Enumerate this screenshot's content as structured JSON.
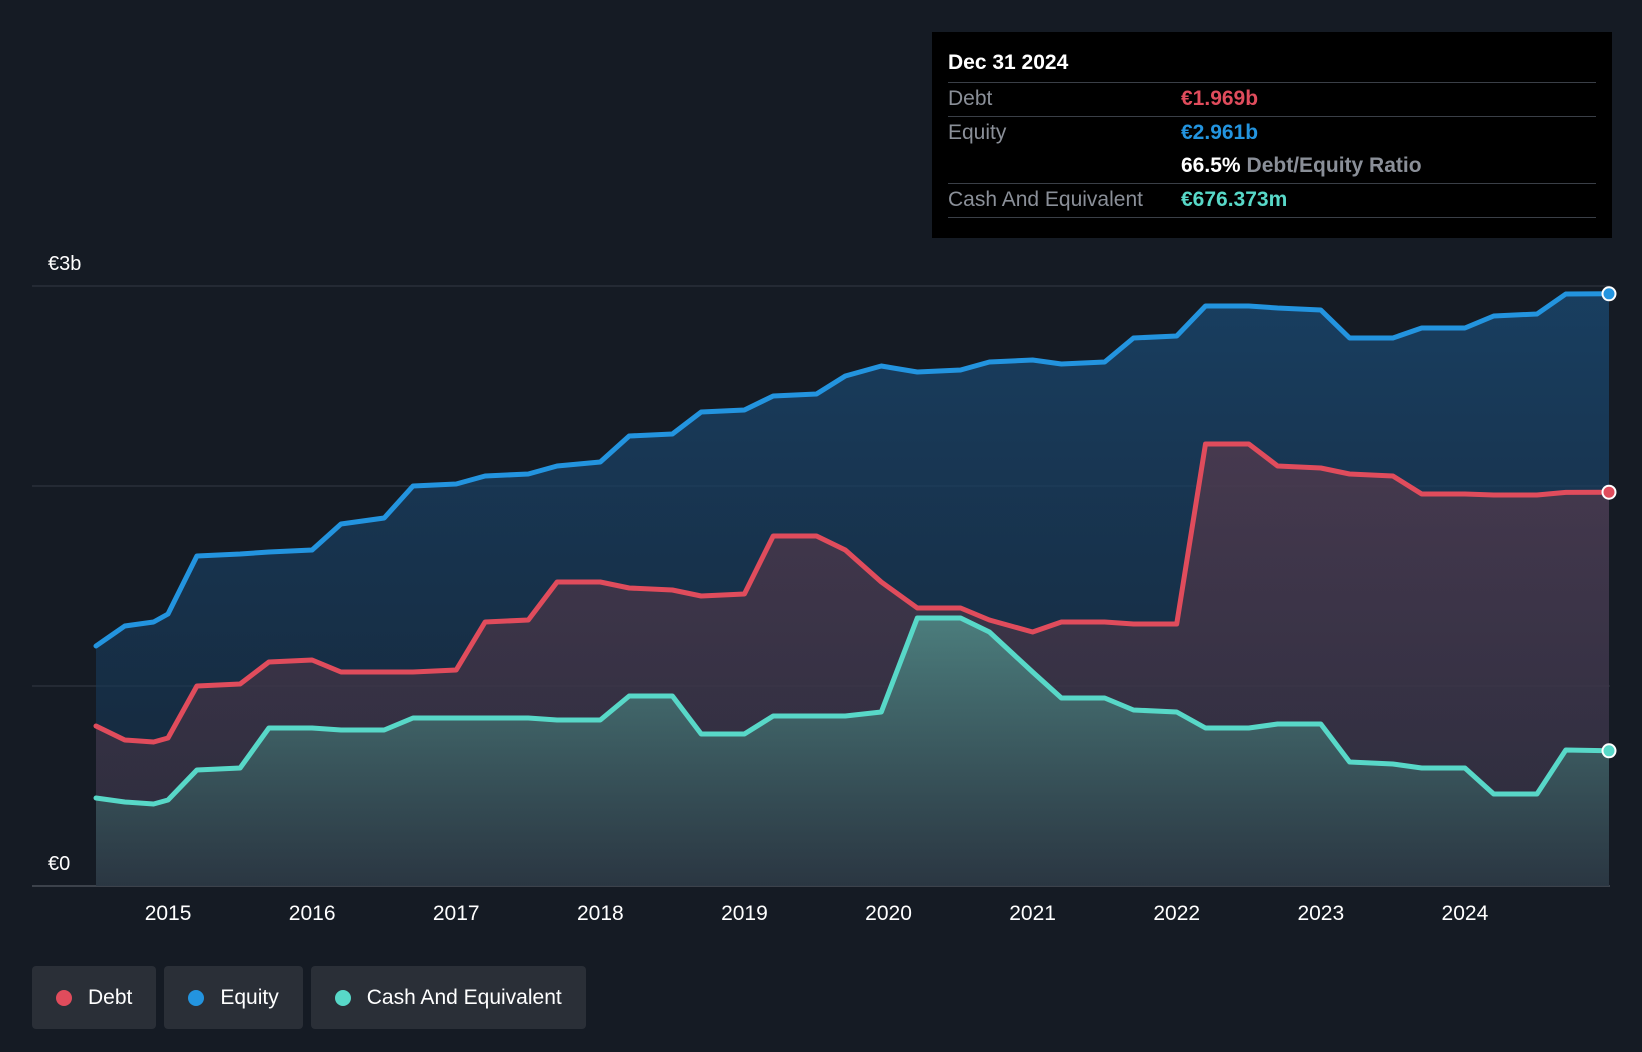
{
  "chart_data": {
    "type": "area",
    "ylabels": [
      "€3b",
      "€0"
    ],
    "ylim": [
      0,
      3.0
    ],
    "xlim": [
      2014.5,
      2025.0
    ],
    "xticks": [
      "2015",
      "2016",
      "2017",
      "2018",
      "2019",
      "2020",
      "2021",
      "2022",
      "2023",
      "2024"
    ],
    "grid": true,
    "legend_position": "bottom-left",
    "series": [
      {
        "name": "Equity",
        "color": "#2394df",
        "x": [
          2014.5,
          2014.7,
          2014.9,
          2015.0,
          2015.2,
          2015.5,
          2015.7,
          2016.0,
          2016.2,
          2016.5,
          2016.7,
          2017.0,
          2017.2,
          2017.5,
          2017.7,
          2018.0,
          2018.2,
          2018.5,
          2018.7,
          2019.0,
          2019.2,
          2019.5,
          2019.7,
          2019.95,
          2020.2,
          2020.5,
          2020.7,
          2021.0,
          2021.2,
          2021.5,
          2021.7,
          2022.0,
          2022.2,
          2022.5,
          2022.7,
          2023.0,
          2023.2,
          2023.5,
          2023.7,
          2024.0,
          2024.2,
          2024.5,
          2024.7,
          2025.0
        ],
        "values": [
          1.2,
          1.3,
          1.32,
          1.36,
          1.65,
          1.66,
          1.67,
          1.68,
          1.81,
          1.84,
          2.0,
          2.01,
          2.05,
          2.06,
          2.1,
          2.12,
          2.25,
          2.26,
          2.37,
          2.38,
          2.45,
          2.46,
          2.55,
          2.6,
          2.57,
          2.58,
          2.62,
          2.63,
          2.61,
          2.62,
          2.74,
          2.75,
          2.9,
          2.9,
          2.89,
          2.88,
          2.74,
          2.74,
          2.79,
          2.79,
          2.85,
          2.86,
          2.96,
          2.961
        ]
      },
      {
        "name": "Debt",
        "color": "#e04c5c",
        "x": [
          2014.5,
          2014.7,
          2014.9,
          2015.0,
          2015.2,
          2015.5,
          2015.7,
          2016.0,
          2016.2,
          2016.5,
          2016.7,
          2017.0,
          2017.2,
          2017.5,
          2017.7,
          2018.0,
          2018.2,
          2018.5,
          2018.7,
          2019.0,
          2019.2,
          2019.5,
          2019.7,
          2019.95,
          2020.2,
          2020.5,
          2020.7,
          2021.0,
          2021.2,
          2021.5,
          2021.7,
          2022.0,
          2022.2,
          2022.5,
          2022.7,
          2023.0,
          2023.2,
          2023.5,
          2023.7,
          2024.0,
          2024.2,
          2024.5,
          2024.7,
          2025.0
        ],
        "values": [
          0.8,
          0.73,
          0.72,
          0.74,
          1.0,
          1.01,
          1.12,
          1.13,
          1.07,
          1.07,
          1.07,
          1.08,
          1.32,
          1.33,
          1.52,
          1.52,
          1.49,
          1.48,
          1.45,
          1.46,
          1.75,
          1.75,
          1.68,
          1.52,
          1.39,
          1.39,
          1.33,
          1.27,
          1.32,
          1.32,
          1.31,
          1.31,
          2.21,
          2.21,
          2.1,
          2.09,
          2.06,
          2.05,
          1.96,
          1.96,
          1.955,
          1.955,
          1.968,
          1.969
        ]
      },
      {
        "name": "Cash And Equivalent",
        "color": "#58d8c8",
        "x": [
          2014.5,
          2014.7,
          2014.9,
          2015.0,
          2015.2,
          2015.5,
          2015.7,
          2016.0,
          2016.2,
          2016.5,
          2016.7,
          2017.0,
          2017.2,
          2017.5,
          2017.7,
          2018.0,
          2018.2,
          2018.5,
          2018.7,
          2019.0,
          2019.2,
          2019.5,
          2019.7,
          2019.95,
          2020.2,
          2020.5,
          2020.7,
          2021.0,
          2021.2,
          2021.5,
          2021.7,
          2022.0,
          2022.2,
          2022.5,
          2022.7,
          2023.0,
          2023.2,
          2023.5,
          2023.7,
          2024.0,
          2024.2,
          2024.5,
          2024.7,
          2025.0
        ],
        "values": [
          0.44,
          0.42,
          0.41,
          0.43,
          0.58,
          0.59,
          0.79,
          0.79,
          0.78,
          0.78,
          0.84,
          0.84,
          0.84,
          0.84,
          0.83,
          0.83,
          0.95,
          0.95,
          0.76,
          0.76,
          0.85,
          0.85,
          0.85,
          0.87,
          1.34,
          1.34,
          1.27,
          1.07,
          0.94,
          0.94,
          0.88,
          0.87,
          0.79,
          0.79,
          0.81,
          0.81,
          0.62,
          0.61,
          0.59,
          0.59,
          0.46,
          0.46,
          0.68,
          0.676
        ]
      }
    ]
  },
  "tooltip": {
    "date": "Dec 31 2024",
    "debt_label": "Debt",
    "debt_value": "€1.969b",
    "equity_label": "Equity",
    "equity_value": "€2.961b",
    "ratio_value": "66.5%",
    "ratio_label": "Debt/Equity Ratio",
    "cash_label": "Cash And Equivalent",
    "cash_value": "€676.373m"
  },
  "legend": {
    "debt": "Debt",
    "equity": "Equity",
    "cash": "Cash And Equivalent"
  },
  "colors": {
    "background": "#151b24",
    "debt": "#e04c5c",
    "equity": "#2394df",
    "cash": "#58d8c8"
  }
}
